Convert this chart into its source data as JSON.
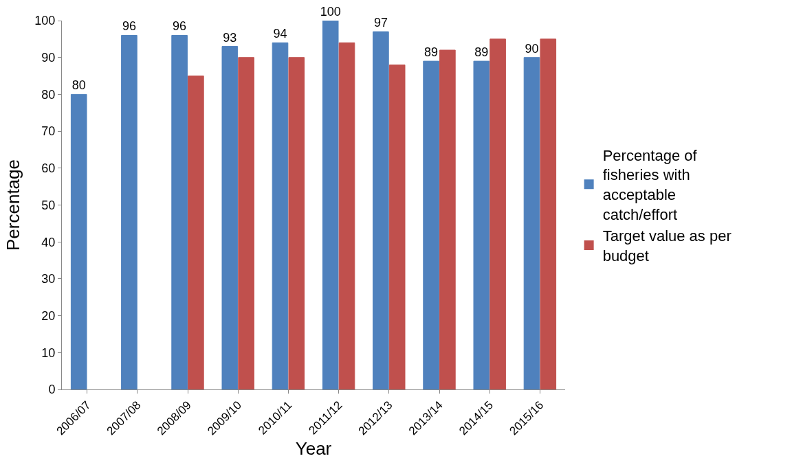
{
  "chart_data": {
    "type": "bar",
    "xlabel": "Year",
    "ylabel": "Percentage",
    "categories": [
      "2006/07",
      "2007/08",
      "2008/09",
      "2009/10",
      "2010/11",
      "2011/12",
      "2012/13",
      "2013/14",
      "2014/15",
      "2015/16"
    ],
    "series": [
      {
        "name": "Percentage of fisheries with acceptable catch/effort",
        "color": "#4f81bd",
        "values": [
          80,
          96,
          96,
          93,
          94,
          100,
          97,
          89,
          89,
          90
        ],
        "value_labels": [
          "80",
          "96",
          "96",
          "93",
          "94",
          "100",
          "97",
          "89",
          "89",
          "90"
        ]
      },
      {
        "name": "Target value as per budget",
        "color": "#c0504d",
        "values": [
          null,
          null,
          85,
          90,
          90,
          94,
          88,
          92,
          95,
          95
        ]
      }
    ],
    "ylim": [
      0,
      100
    ],
    "yticks": [
      0,
      10,
      20,
      30,
      40,
      50,
      60,
      70,
      80,
      90,
      100
    ],
    "legend": "right"
  }
}
